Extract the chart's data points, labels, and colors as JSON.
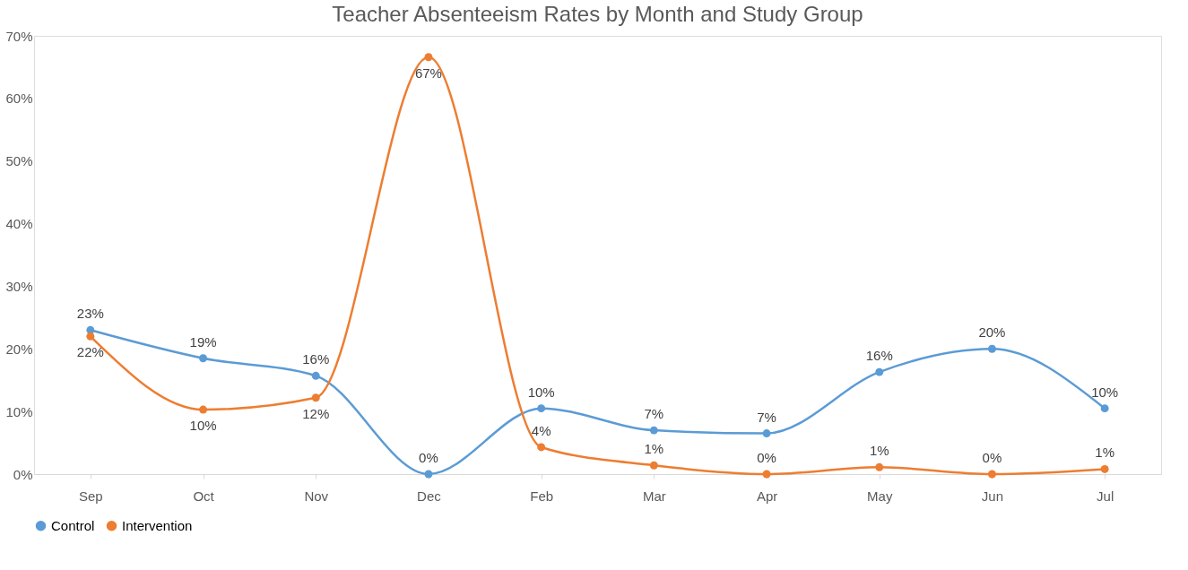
{
  "chart_data": {
    "type": "line",
    "title": "Teacher Absenteeism Rates by Month and Study Group",
    "categories": [
      "Sep",
      "Oct",
      "Nov",
      "Dec",
      "Feb",
      "Mar",
      "Apr",
      "May",
      "Jun",
      "Jul"
    ],
    "series": [
      {
        "name": "Control",
        "color": "#5b9bd5",
        "values": [
          23,
          18.5,
          15.7,
          0,
          10.5,
          7,
          6.5,
          16.3,
          20,
          10.5
        ],
        "value_labels": [
          "23%",
          "19%",
          "16%",
          "0%",
          "10%",
          "7%",
          "7%",
          "16%",
          "20%",
          "10%"
        ],
        "line_style": "solid"
      },
      {
        "name": "Intervention",
        "color": "#ed7d31",
        "values": [
          22,
          10.3,
          12.2,
          66.6,
          4.3,
          1.4,
          0,
          1.1,
          0,
          0.8
        ],
        "value_labels": [
          "22%",
          "10%",
          "12%",
          "67%",
          "4%",
          "1%",
          "0%",
          "1%",
          "0%",
          "1%"
        ],
        "line_style": "solid"
      }
    ],
    "ylim": [
      0,
      70
    ],
    "yticks": [
      {
        "value": 0,
        "label": "0%"
      },
      {
        "value": 10,
        "label": "10%"
      },
      {
        "value": 20,
        "label": "20%"
      },
      {
        "value": 30,
        "label": "30%"
      },
      {
        "value": 40,
        "label": "40%"
      },
      {
        "value": 50,
        "label": "50%"
      },
      {
        "value": 60,
        "label": "60%"
      },
      {
        "value": 70,
        "label": "70%"
      }
    ],
    "legend": "bottom",
    "marker": "circle",
    "grid": false
  }
}
